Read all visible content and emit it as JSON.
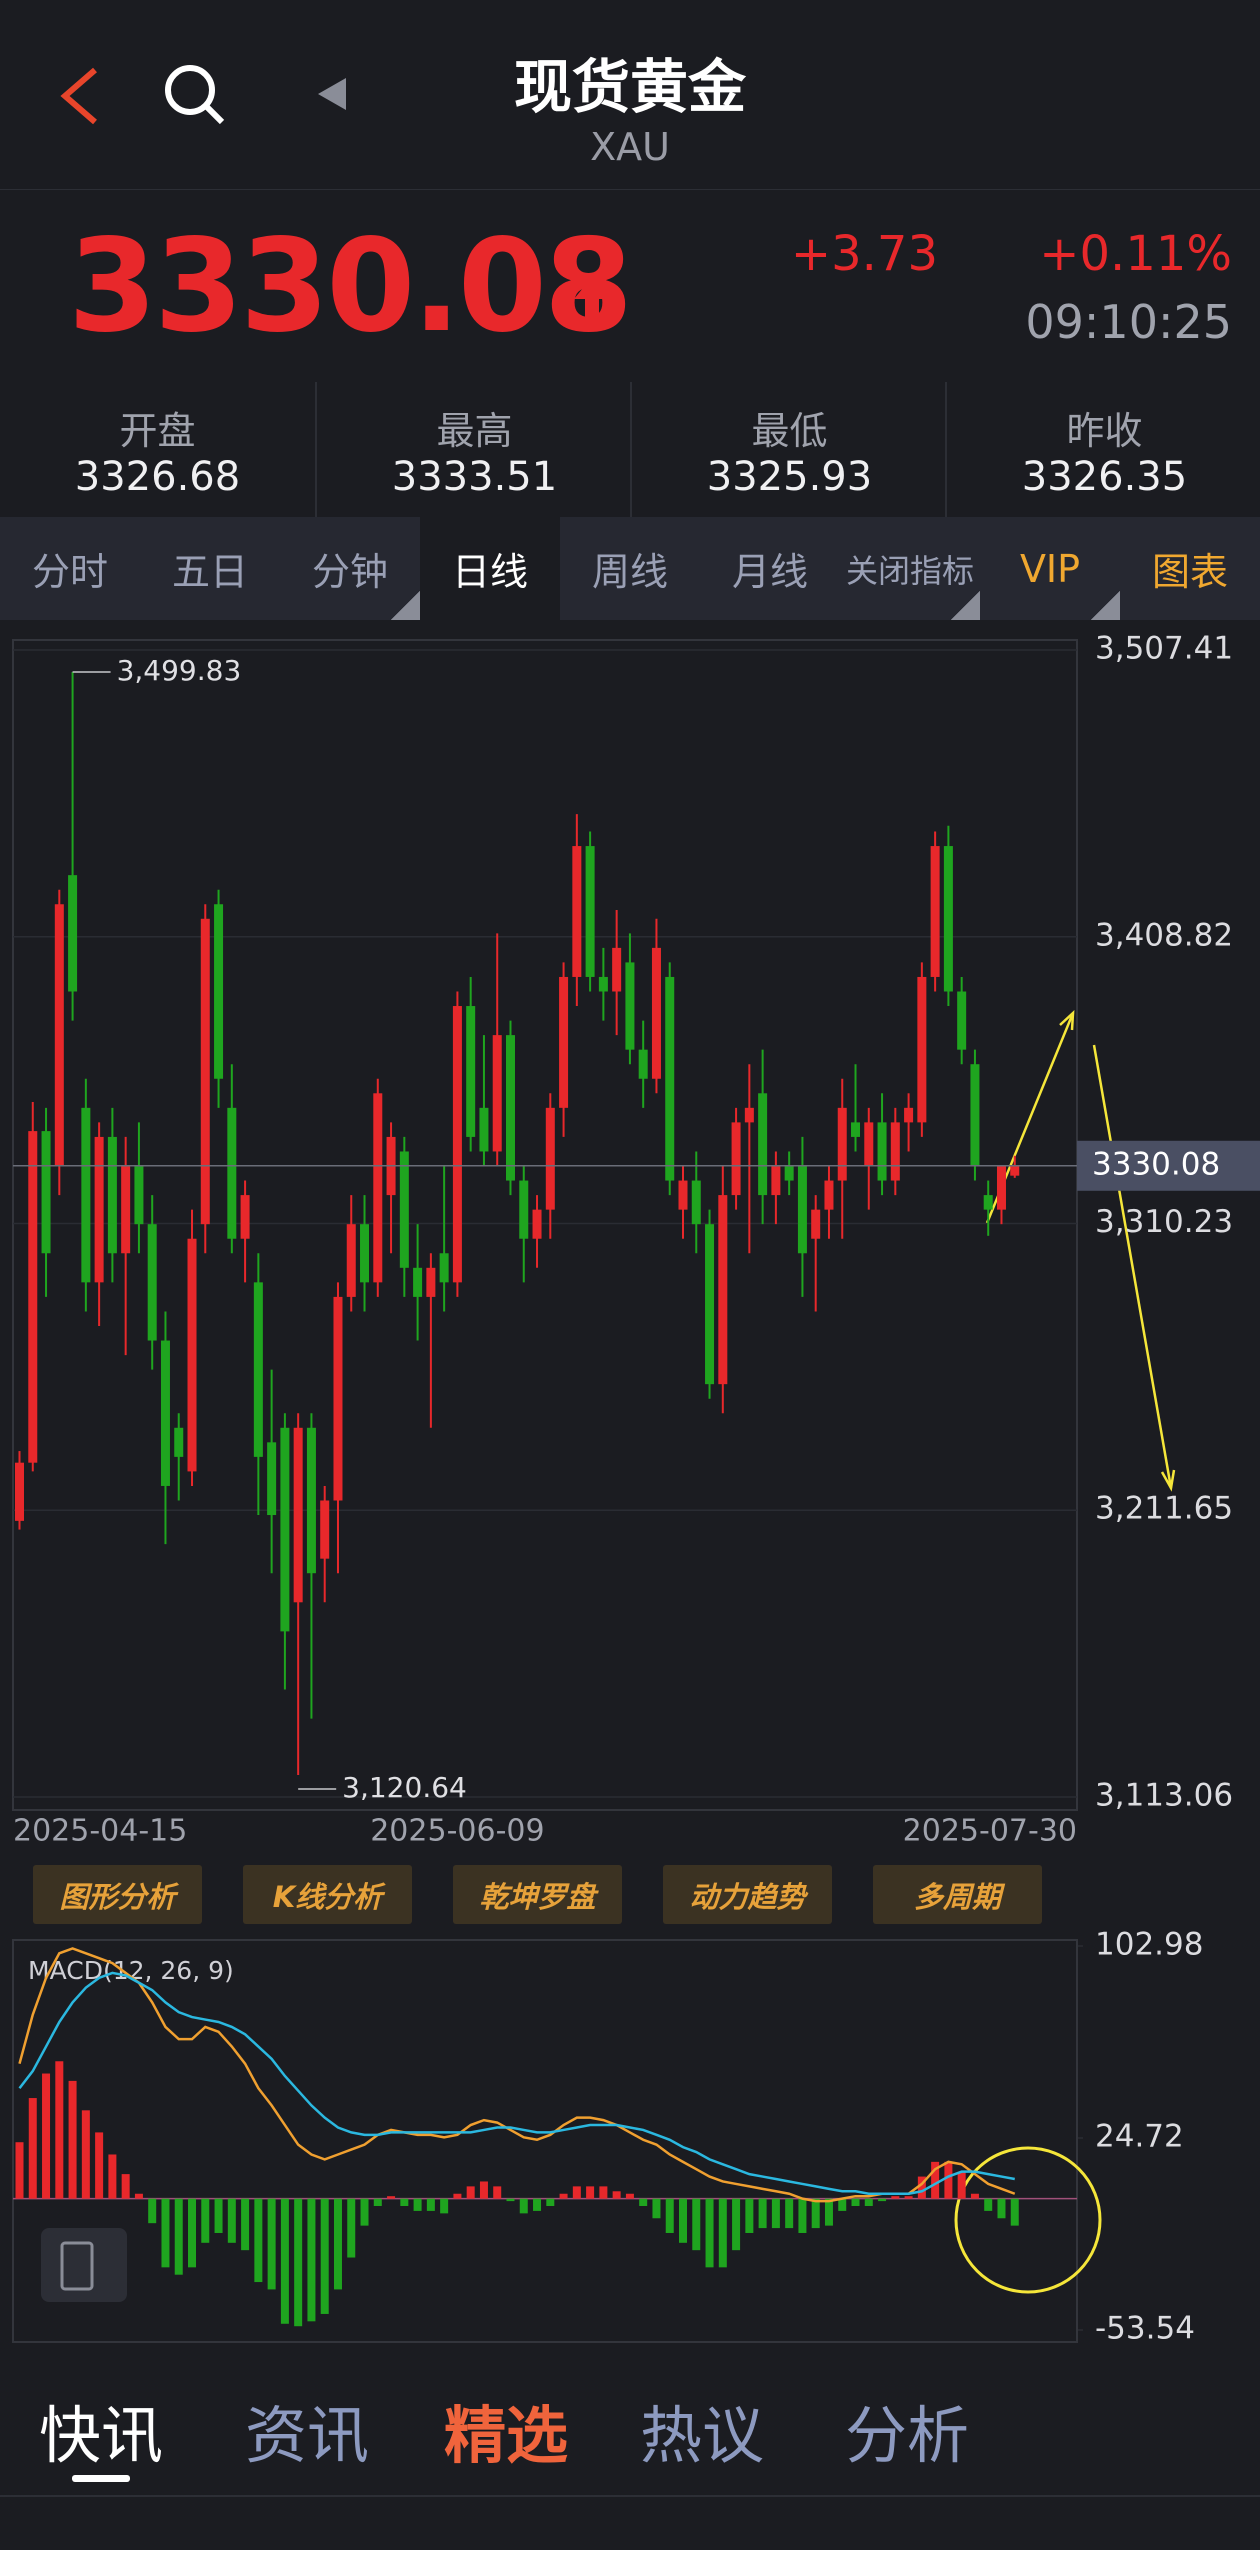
{
  "header": {
    "title": "现货黄金",
    "subtitle": "XAU"
  },
  "quote": {
    "price": "3330.08",
    "change": "+3.73",
    "change_pct": "+0.11%",
    "time": "09:10:25"
  },
  "stats": [
    {
      "label": "开盘",
      "value": "3326.68"
    },
    {
      "label": "最高",
      "value": "3333.51"
    },
    {
      "label": "最低",
      "value": "3325.93"
    },
    {
      "label": "昨收",
      "value": "3326.35"
    }
  ],
  "tabs": [
    "分时",
    "五日",
    "分钟",
    "日线",
    "周线",
    "月线",
    "关闭指标",
    "VIP",
    "图表"
  ],
  "chart_data": [
    {
      "type": "candlestick",
      "categories": [
        "2025-04-15",
        null,
        null,
        null,
        null,
        null,
        null,
        null,
        null,
        null,
        null,
        null,
        null,
        null,
        null,
        null,
        null,
        null,
        null,
        null,
        null,
        null,
        null,
        null,
        null,
        null,
        null,
        null,
        null,
        null,
        null,
        null,
        null,
        "2025-06-09",
        null,
        null,
        null,
        null,
        null,
        null,
        null,
        null,
        null,
        null,
        null,
        null,
        null,
        null,
        null,
        null,
        null,
        null,
        null,
        null,
        null,
        null,
        null,
        null,
        null,
        null,
        null,
        null,
        null,
        null,
        null,
        null,
        null,
        null,
        null,
        null,
        null,
        null,
        null,
        null,
        null,
        "2025-07-30"
      ],
      "candles": [
        [
          3208,
          3232,
          3205,
          3228
        ],
        [
          3228,
          3352,
          3225,
          3342
        ],
        [
          3342,
          3350,
          3285,
          3300
        ],
        [
          3330,
          3425,
          3320,
          3420
        ],
        [
          3430,
          3499.83,
          3380,
          3390
        ],
        [
          3350,
          3360,
          3280,
          3290
        ],
        [
          3290,
          3345,
          3275,
          3340
        ],
        [
          3340,
          3350,
          3290,
          3300
        ],
        [
          3300,
          3340,
          3265,
          3330
        ],
        [
          3330,
          3345,
          3300,
          3310
        ],
        [
          3310,
          3320,
          3260,
          3270
        ],
        [
          3270,
          3280,
          3200,
          3220
        ],
        [
          3240,
          3245,
          3215,
          3230
        ],
        [
          3225,
          3315,
          3220,
          3305
        ],
        [
          3310,
          3420,
          3300,
          3415
        ],
        [
          3420,
          3425,
          3350,
          3360
        ],
        [
          3350,
          3365,
          3300,
          3305
        ],
        [
          3305,
          3325,
          3290,
          3320
        ],
        [
          3290,
          3300,
          3210,
          3230
        ],
        [
          3235,
          3260,
          3190,
          3210
        ],
        [
          3240,
          3245,
          3150,
          3170
        ],
        [
          3180,
          3245,
          3120.64,
          3240
        ],
        [
          3240,
          3245,
          3140,
          3190
        ],
        [
          3195,
          3220,
          3180,
          3215
        ],
        [
          3215,
          3290,
          3190,
          3285
        ],
        [
          3285,
          3320,
          3280,
          3310
        ],
        [
          3310,
          3320,
          3280,
          3290
        ],
        [
          3290,
          3360,
          3285,
          3355
        ],
        [
          3320,
          3345,
          3300,
          3340
        ],
        [
          3335,
          3340,
          3285,
          3295
        ],
        [
          3295,
          3310,
          3270,
          3285
        ],
        [
          3285,
          3300,
          3240,
          3295
        ],
        [
          3300,
          3330,
          3280,
          3290
        ],
        [
          3290,
          3390,
          3285,
          3385
        ],
        [
          3385,
          3395,
          3335,
          3340
        ],
        [
          3350,
          3375,
          3330,
          3335
        ],
        [
          3335,
          3410,
          3330,
          3375
        ],
        [
          3375,
          3380,
          3320,
          3325
        ],
        [
          3325,
          3330,
          3290,
          3305
        ],
        [
          3305,
          3320,
          3295,
          3315
        ],
        [
          3315,
          3355,
          3305,
          3350
        ],
        [
          3350,
          3400,
          3340,
          3395
        ],
        [
          3395,
          3451,
          3385,
          3440
        ],
        [
          3440,
          3445,
          3390,
          3395
        ],
        [
          3395,
          3405,
          3380,
          3390
        ],
        [
          3390,
          3418,
          3375,
          3405
        ],
        [
          3400,
          3410,
          3365,
          3370
        ],
        [
          3370,
          3380,
          3350,
          3360
        ],
        [
          3360,
          3415,
          3355,
          3405
        ],
        [
          3395,
          3400,
          3320,
          3325
        ],
        [
          3315,
          3330,
          3305,
          3325
        ],
        [
          3325,
          3335,
          3300,
          3310
        ],
        [
          3310,
          3315,
          3250,
          3255
        ],
        [
          3255,
          3330,
          3245,
          3320
        ],
        [
          3320,
          3350,
          3315,
          3345
        ],
        [
          3345,
          3365,
          3300,
          3350
        ],
        [
          3355,
          3370,
          3310,
          3320
        ],
        [
          3320,
          3335,
          3310,
          3330
        ],
        [
          3330,
          3335,
          3320,
          3325
        ],
        [
          3330,
          3340,
          3285,
          3300
        ],
        [
          3305,
          3320,
          3280,
          3315
        ],
        [
          3315,
          3330,
          3305,
          3325
        ],
        [
          3325,
          3360,
          3305,
          3350
        ],
        [
          3345,
          3365,
          3335,
          3340
        ],
        [
          3330,
          3350,
          3315,
          3345
        ],
        [
          3345,
          3355,
          3320,
          3325
        ],
        [
          3325,
          3350,
          3320,
          3345
        ],
        [
          3345,
          3355,
          3335,
          3350
        ],
        [
          3345,
          3400,
          3340,
          3395
        ],
        [
          3395,
          3445,
          3390,
          3440
        ],
        [
          3440,
          3447,
          3385,
          3390
        ],
        [
          3390,
          3395,
          3365,
          3370
        ],
        [
          3365,
          3370,
          3325,
          3330
        ],
        [
          3320,
          3325,
          3306,
          3315
        ],
        [
          3315,
          3330,
          3310,
          3330
        ],
        [
          3326.68,
          3333.51,
          3325.93,
          3330.08
        ]
      ],
      "up_color": "#e8282b",
      "down_color": "#1fa51f",
      "ylim": [
        3113.06,
        3507.41
      ],
      "yticks": [
        {
          "value": 3507.41,
          "label": "3,507.41"
        },
        {
          "value": 3408.82,
          "label": "3,408.82"
        },
        {
          "value": 3310.23,
          "label": "3,310.23"
        },
        {
          "value": 3211.65,
          "label": "3,211.65"
        },
        {
          "value": 3113.06,
          "label": "3,113.06"
        }
      ],
      "grid": true,
      "current_price": {
        "value": 3330.08,
        "label": "3330.08"
      },
      "annotations": [
        {
          "value": 3499.83,
          "label": "3,499.83"
        },
        {
          "value": 3120.64,
          "label": "3,120.64"
        }
      ]
    },
    {
      "type": "macd",
      "title": "MACD(12, 26, 9)",
      "bars": [
        23,
        41,
        51,
        56,
        48,
        36,
        27,
        18,
        10,
        2,
        -10,
        -28,
        -31,
        -28,
        -18,
        -14,
        -18,
        -21,
        -34,
        -37,
        -51,
        -52,
        -50,
        -47,
        -37,
        -24,
        -11,
        -3,
        1,
        -3,
        -5,
        -5,
        -6,
        2,
        5,
        7,
        5,
        -1,
        -6,
        -5,
        -3,
        2,
        5,
        5,
        5,
        3,
        2,
        -3,
        -8,
        -14,
        -18,
        -21,
        -28,
        -28,
        -21,
        -14,
        -12,
        -12,
        -12,
        -14,
        -12,
        -11,
        -5,
        -3,
        -3,
        -1,
        1,
        1,
        9,
        15,
        15,
        11,
        2,
        -5,
        -8,
        -11
      ],
      "up_color": "#e8282b",
      "down_color": "#1fa51f",
      "series": [
        {
          "color": "#f0a030",
          "values": [
            55,
            75,
            90,
            100,
            102,
            100,
            98,
            96,
            92,
            88,
            80,
            70,
            65,
            65,
            70,
            68,
            62,
            55,
            45,
            38,
            30,
            22,
            18,
            16,
            18,
            20,
            22,
            26,
            28,
            27,
            26,
            26,
            25,
            26,
            30,
            32,
            31,
            28,
            25,
            24,
            26,
            30,
            33,
            33,
            32,
            30,
            27,
            24,
            22,
            18,
            15,
            12,
            9,
            7,
            6,
            5,
            4,
            3,
            2,
            0,
            -1,
            -1,
            0,
            1,
            1,
            2,
            2,
            2,
            6,
            12,
            15,
            14,
            10,
            6,
            4,
            2
          ]
        },
        {
          "color": "#2bb8e0",
          "values": [
            45,
            52,
            62,
            72,
            80,
            86,
            90,
            92,
            91,
            88,
            85,
            80,
            76,
            74,
            73,
            72,
            70,
            67,
            62,
            57,
            50,
            44,
            38,
            33,
            29,
            27,
            26,
            26,
            27,
            27,
            27,
            27,
            27,
            27,
            27,
            28,
            29,
            29,
            28,
            27,
            27,
            28,
            29,
            30,
            30,
            30,
            29,
            28,
            26,
            24,
            21,
            19,
            16,
            14,
            12,
            10,
            9,
            8,
            7,
            6,
            5,
            4,
            3,
            3,
            2,
            2,
            2,
            2,
            3,
            6,
            9,
            11,
            11,
            10,
            9,
            8
          ]
        }
      ],
      "ylim": [
        -53.54,
        102.98
      ],
      "yticks": [
        102.98,
        24.72,
        -53.54
      ],
      "grid": false
    }
  ],
  "tools": [
    "图形分析",
    "K线分析",
    "乾坤罗盘",
    "动力趋势",
    "多周期"
  ],
  "news_tabs": [
    "快讯",
    "资讯",
    "精选",
    "热议",
    "分析"
  ]
}
